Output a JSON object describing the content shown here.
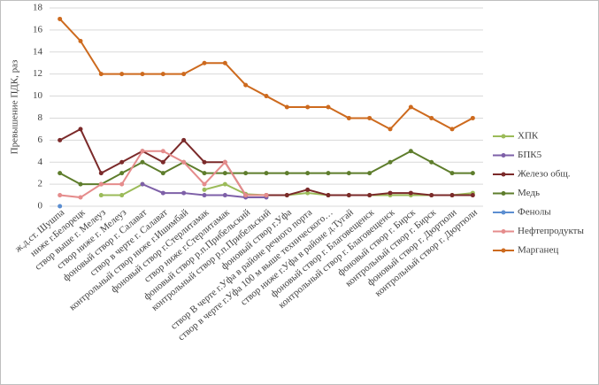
{
  "chart_data": {
    "type": "line",
    "ylabel": "Превышение ПДК, раз",
    "categories": [
      "ж.д.ст. Шушпа",
      "ниже г.Белорецк",
      "створ выше г. Мелеуз",
      "створ ниже г. Мелеуз",
      "фоновый створ г. Салават",
      "створ в черте г. Салават",
      "контрольный створ ниже г.Ишимбай",
      "фоновый створ г.Стерлитамак",
      "створ ниже г.Стерлитамак",
      "фоновый створ р.п.Прибельский",
      "контрольный створ р.п.Прибельский",
      "фоновый створ г.Уфа",
      "створ В черте г.Уфа в районе речного порта",
      "створ  в черте г.Уфа 100 м выше технического…",
      "створ ниже г.Уфа в районе д.Тугай",
      "фоновый створ г. Благовещенск",
      "контрольный створ г. Благовещенск",
      "фоновый створ г. Бирск",
      "контрольный створ г. Бирск",
      "фоновый створ г. Дюртюли",
      "контрольный створ г. Дюртюли"
    ],
    "series": [
      {
        "name": "ХПК",
        "color": "#9bbb59",
        "values": [
          null,
          null,
          1,
          1,
          2,
          null,
          null,
          1.5,
          2,
          1.1,
          1,
          1,
          1.2,
          1,
          1,
          1,
          1,
          1,
          1,
          1,
          1.2
        ]
      },
      {
        "name": "БПК5",
        "color": "#7e60a8",
        "values": [
          null,
          null,
          null,
          null,
          2,
          1.2,
          1.2,
          1,
          1,
          0.8,
          0.8,
          null,
          null,
          null,
          null,
          null,
          null,
          null,
          null,
          null,
          null
        ]
      },
      {
        "name": "Железо общ.",
        "color": "#7b2a2a",
        "values": [
          6,
          7,
          3,
          4,
          5,
          4,
          6,
          4,
          4,
          1,
          1,
          1,
          1.5,
          1,
          1,
          1,
          1.2,
          1.2,
          1,
          1,
          1
        ]
      },
      {
        "name": "Медь",
        "color": "#5e7d2c",
        "values": [
          3,
          2,
          2,
          3,
          4,
          3,
          4,
          3,
          3,
          3,
          3,
          3,
          3,
          3,
          3,
          3,
          4,
          5,
          4,
          3,
          3
        ]
      },
      {
        "name": "Фенолы",
        "color": "#5b8ed1",
        "values": [
          0,
          null,
          null,
          null,
          null,
          null,
          null,
          null,
          null,
          null,
          null,
          null,
          null,
          null,
          null,
          null,
          null,
          null,
          null,
          null,
          null
        ]
      },
      {
        "name": "Нефтепродукты",
        "color": "#e58c8c",
        "values": [
          1,
          0.8,
          2,
          2,
          5,
          5,
          4,
          2,
          4,
          1,
          1,
          null,
          null,
          null,
          null,
          null,
          null,
          null,
          null,
          null,
          null
        ]
      },
      {
        "name": "Марганец",
        "color": "#cd6a1e",
        "values": [
          17,
          15,
          12,
          12,
          12,
          12,
          12,
          13,
          13,
          11,
          10,
          9,
          9,
          9,
          8,
          8,
          7,
          9,
          8,
          7,
          8
        ]
      }
    ],
    "ylim": [
      0,
      18
    ],
    "yticks": [
      0,
      2,
      4,
      6,
      8,
      10,
      12,
      14,
      16,
      18
    ],
    "grid": true,
    "legend": "right"
  }
}
